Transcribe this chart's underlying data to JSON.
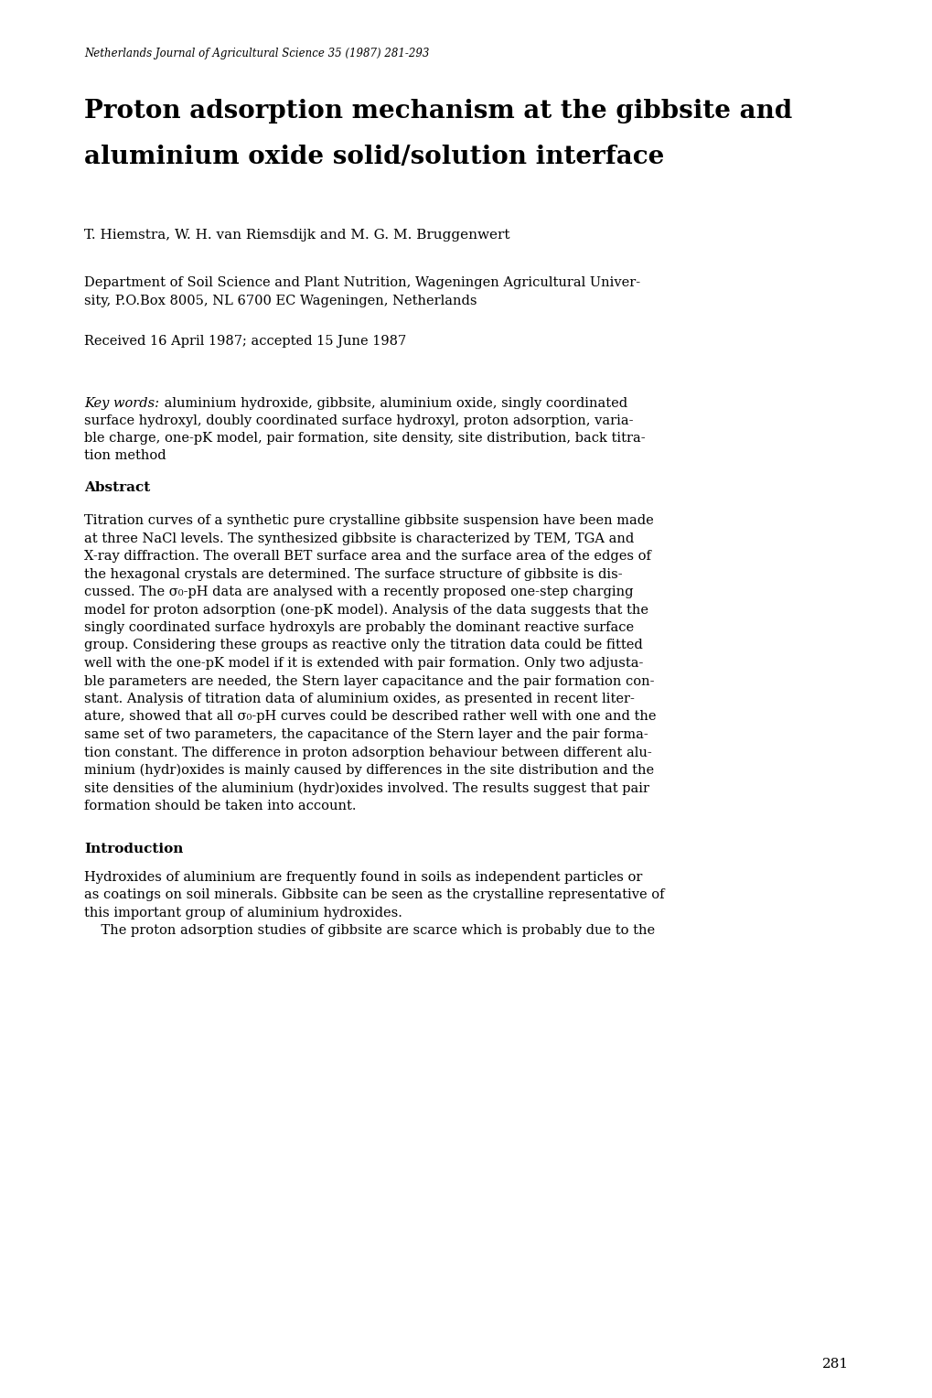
{
  "background_color": "#ffffff",
  "journal_line": "Netherlands Journal of Agricultural Science 35 (1987) 281-293",
  "title_line1": "Proton adsorption mechanism at the gibbsite and",
  "title_line2": "aluminium oxide solid/solution interface",
  "authors": "T. Hiemstra, W. H. van Riemsdijk and M. G. M. Bruggenwert",
  "affiliation_line1": "Department of Soil Science and Plant Nutrition, Wageningen Agricultural Univer-",
  "affiliation_line2": "sity, P.O.Box 8005, NL 6700 EC Wageningen, Netherlands",
  "received": "Received 16 April 1987; accepted 15 June 1987",
  "kw_label": "Key words:",
  "kw_line1": " aluminium hydroxide, gibbsite, aluminium oxide, singly coordinated",
  "kw_line2": "surface hydroxyl, doubly coordinated surface hydroxyl, proton adsorption, varia-",
  "kw_line3": "ble charge, one-pK model, pair formation, site density, site distribution, back titra-",
  "kw_line4": "tion method",
  "abstract_label": "Abstract",
  "abstract_lines": [
    "Titration curves of a synthetic pure crystalline gibbsite suspension have been made",
    "at three NaCl levels. The synthesized gibbsite is characterized by TEM, TGA and",
    "X-ray diffraction. The overall BET surface area and the surface area of the edges of",
    "the hexagonal crystals are determined. The surface structure of gibbsite is dis-",
    "cussed. The σ₀-pH data are analysed with a recently proposed one-step charging",
    "model for proton adsorption (one-pK model). Analysis of the data suggests that the",
    "singly coordinated surface hydroxyls are probably the dominant reactive surface",
    "group. Considering these groups as reactive only the titration data could be fitted",
    "well with the one-pK model if it is extended with pair formation. Only two adjusta-",
    "ble parameters are needed, the Stern layer capacitance and the pair formation con-",
    "stant. Analysis of titration data of aluminium oxides, as presented in recent liter-",
    "ature, showed that all σ₀-pH curves could be described rather well with one and the",
    "same set of two parameters, the capacitance of the Stern layer and the pair forma-",
    "tion constant. The difference in proton adsorption behaviour between different alu-",
    "minium (hydr)oxides is mainly caused by differences in the site distribution and the",
    "site densities of the aluminium (hydr)oxides involved. The results suggest that pair",
    "formation should be taken into account."
  ],
  "intro_label": "Introduction",
  "intro_lines": [
    "Hydroxides of aluminium are frequently found in soils as independent particles or",
    "as coatings on soil minerals. Gibbsite can be seen as the crystalline representative of",
    "this important group of aluminium hydroxides.",
    "    The proton adsorption studies of gibbsite are scarce which is probably due to the"
  ],
  "page_number": "281",
  "lm": 0.09,
  "rm": 0.91
}
